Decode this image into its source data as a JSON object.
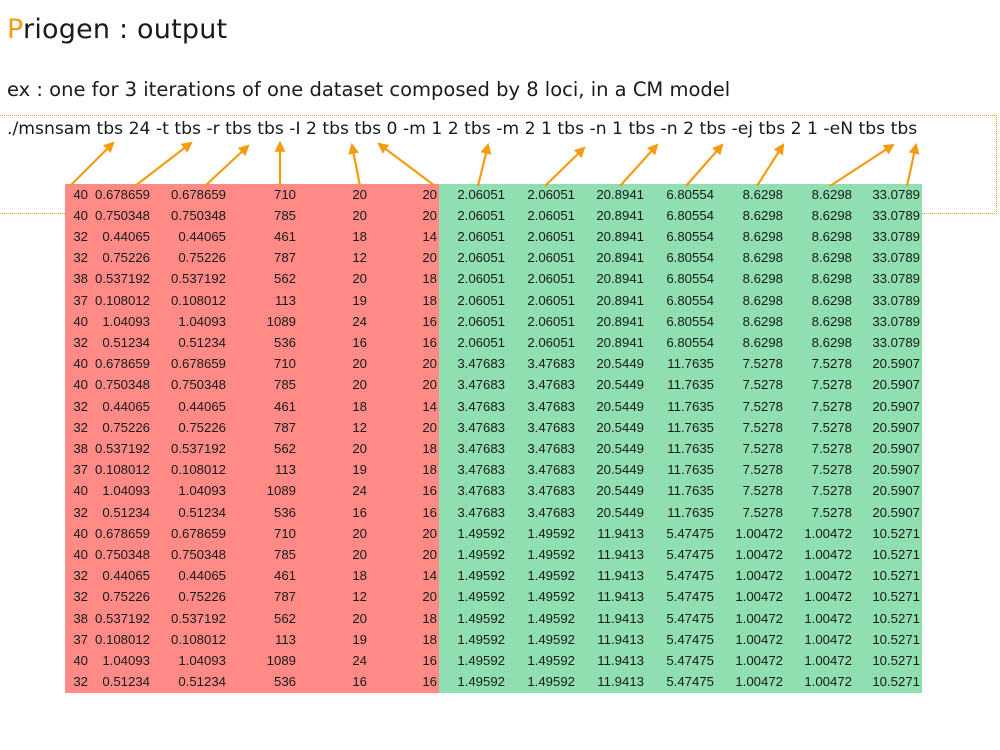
{
  "slide": {
    "title_accent": "P",
    "title_rest": "riogen : output",
    "subtitle": "ex : one for 3 iterations of one dataset composed by 8 loci, in a CM model",
    "command": "./msnsam tbs 24 -t tbs -r tbs tbs -I 2 tbs tbs 0 -m 1 2 tbs -m 2 1 tbs -n 1 tbs -n 2 tbs -ej tbs 2 1 -eN tbs tbs"
  },
  "colors": {
    "accent": "#f39c12",
    "red_block": "#ff8a86",
    "green_block": "#8fdfb0"
  },
  "table": {
    "rows": [
      [
        "40",
        "0.678659",
        "0.678659",
        "710",
        "20",
        "20",
        "2.06051",
        "2.06051",
        "20.8941",
        "6.80554",
        "8.6298",
        "8.6298",
        "33.0789"
      ],
      [
        "40",
        "0.750348",
        "0.750348",
        "785",
        "20",
        "20",
        "2.06051",
        "2.06051",
        "20.8941",
        "6.80554",
        "8.6298",
        "8.6298",
        "33.0789"
      ],
      [
        "32",
        "0.44065",
        "0.44065",
        "461",
        "18",
        "14",
        "2.06051",
        "2.06051",
        "20.8941",
        "6.80554",
        "8.6298",
        "8.6298",
        "33.0789"
      ],
      [
        "32",
        "0.75226",
        "0.75226",
        "787",
        "12",
        "20",
        "2.06051",
        "2.06051",
        "20.8941",
        "6.80554",
        "8.6298",
        "8.6298",
        "33.0789"
      ],
      [
        "38",
        "0.537192",
        "0.537192",
        "562",
        "20",
        "18",
        "2.06051",
        "2.06051",
        "20.8941",
        "6.80554",
        "8.6298",
        "8.6298",
        "33.0789"
      ],
      [
        "37",
        "0.108012",
        "0.108012",
        "113",
        "19",
        "18",
        "2.06051",
        "2.06051",
        "20.8941",
        "6.80554",
        "8.6298",
        "8.6298",
        "33.0789"
      ],
      [
        "40",
        "1.04093",
        "1.04093",
        "1089",
        "24",
        "16",
        "2.06051",
        "2.06051",
        "20.8941",
        "6.80554",
        "8.6298",
        "8.6298",
        "33.0789"
      ],
      [
        "32",
        "0.51234",
        "0.51234",
        "536",
        "16",
        "16",
        "2.06051",
        "2.06051",
        "20.8941",
        "6.80554",
        "8.6298",
        "8.6298",
        "33.0789"
      ],
      [
        "40",
        "0.678659",
        "0.678659",
        "710",
        "20",
        "20",
        "3.47683",
        "3.47683",
        "20.5449",
        "11.7635",
        "7.5278",
        "7.5278",
        "20.5907"
      ],
      [
        "40",
        "0.750348",
        "0.750348",
        "785",
        "20",
        "20",
        "3.47683",
        "3.47683",
        "20.5449",
        "11.7635",
        "7.5278",
        "7.5278",
        "20.5907"
      ],
      [
        "32",
        "0.44065",
        "0.44065",
        "461",
        "18",
        "14",
        "3.47683",
        "3.47683",
        "20.5449",
        "11.7635",
        "7.5278",
        "7.5278",
        "20.5907"
      ],
      [
        "32",
        "0.75226",
        "0.75226",
        "787",
        "12",
        "20",
        "3.47683",
        "3.47683",
        "20.5449",
        "11.7635",
        "7.5278",
        "7.5278",
        "20.5907"
      ],
      [
        "38",
        "0.537192",
        "0.537192",
        "562",
        "20",
        "18",
        "3.47683",
        "3.47683",
        "20.5449",
        "11.7635",
        "7.5278",
        "7.5278",
        "20.5907"
      ],
      [
        "37",
        "0.108012",
        "0.108012",
        "113",
        "19",
        "18",
        "3.47683",
        "3.47683",
        "20.5449",
        "11.7635",
        "7.5278",
        "7.5278",
        "20.5907"
      ],
      [
        "40",
        "1.04093",
        "1.04093",
        "1089",
        "24",
        "16",
        "3.47683",
        "3.47683",
        "20.5449",
        "11.7635",
        "7.5278",
        "7.5278",
        "20.5907"
      ],
      [
        "32",
        "0.51234",
        "0.51234",
        "536",
        "16",
        "16",
        "3.47683",
        "3.47683",
        "20.5449",
        "11.7635",
        "7.5278",
        "7.5278",
        "20.5907"
      ],
      [
        "40",
        "0.678659",
        "0.678659",
        "710",
        "20",
        "20",
        "1.49592",
        "1.49592",
        "11.9413",
        "5.47475",
        "1.00472",
        "1.00472",
        "10.5271"
      ],
      [
        "40",
        "0.750348",
        "0.750348",
        "785",
        "20",
        "20",
        "1.49592",
        "1.49592",
        "11.9413",
        "5.47475",
        "1.00472",
        "1.00472",
        "10.5271"
      ],
      [
        "32",
        "0.44065",
        "0.44065",
        "461",
        "18",
        "14",
        "1.49592",
        "1.49592",
        "11.9413",
        "5.47475",
        "1.00472",
        "1.00472",
        "10.5271"
      ],
      [
        "32",
        "0.75226",
        "0.75226",
        "787",
        "12",
        "20",
        "1.49592",
        "1.49592",
        "11.9413",
        "5.47475",
        "1.00472",
        "1.00472",
        "10.5271"
      ],
      [
        "38",
        "0.537192",
        "0.537192",
        "562",
        "20",
        "18",
        "1.49592",
        "1.49592",
        "11.9413",
        "5.47475",
        "1.00472",
        "1.00472",
        "10.5271"
      ],
      [
        "37",
        "0.108012",
        "0.108012",
        "113",
        "19",
        "18",
        "1.49592",
        "1.49592",
        "11.9413",
        "5.47475",
        "1.00472",
        "1.00472",
        "10.5271"
      ],
      [
        "40",
        "1.04093",
        "1.04093",
        "1089",
        "24",
        "16",
        "1.49592",
        "1.49592",
        "11.9413",
        "5.47475",
        "1.00472",
        "1.00472",
        "10.5271"
      ],
      [
        "32",
        "0.51234",
        "0.51234",
        "536",
        "16",
        "16",
        "1.49592",
        "1.49592",
        "11.9413",
        "5.47475",
        "1.00472",
        "1.00472",
        "10.5271"
      ]
    ]
  }
}
